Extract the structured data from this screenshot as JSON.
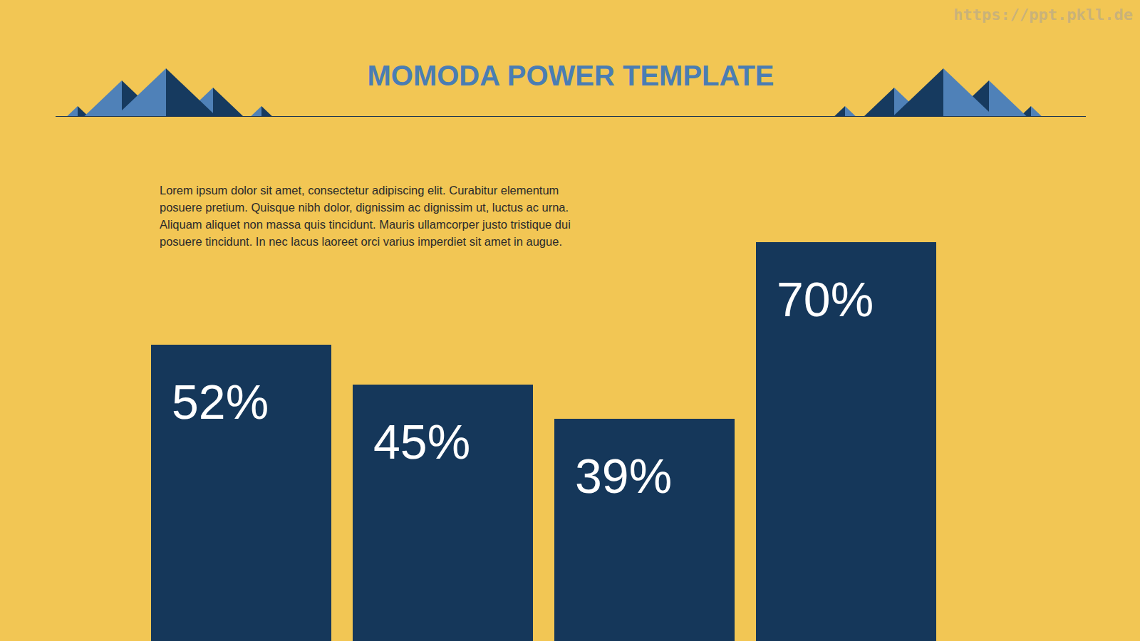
{
  "chart_data": {
    "type": "bar",
    "title": "MOMODA POWER TEMPLATE",
    "annotations": [
      "Lorem ipsum dolor sit amet, consectetur adipiscing elit. Curabitur elementum",
      "posuere pretium. Quisque nibh dolor, dignissim ac dignissim ut, luctus ac urna.",
      "Aliquam aliquet non massa quis tincidunt. Mauris ullamcorper justo tristique dui",
      "posuere tincidunt. In nec lacus laoreet orci varius imperdiet sit amet in augue."
    ],
    "categories": [
      null,
      null,
      null,
      null
    ],
    "values": [
      52,
      45,
      39,
      70
    ],
    "value_labels": [
      "52%",
      "45%",
      "39%",
      "70%"
    ],
    "color": "#15375a",
    "ylim": [
      0,
      75
    ],
    "data_labels": true,
    "tick_labels": false
  },
  "watermark": "https://ppt.pkll.de"
}
